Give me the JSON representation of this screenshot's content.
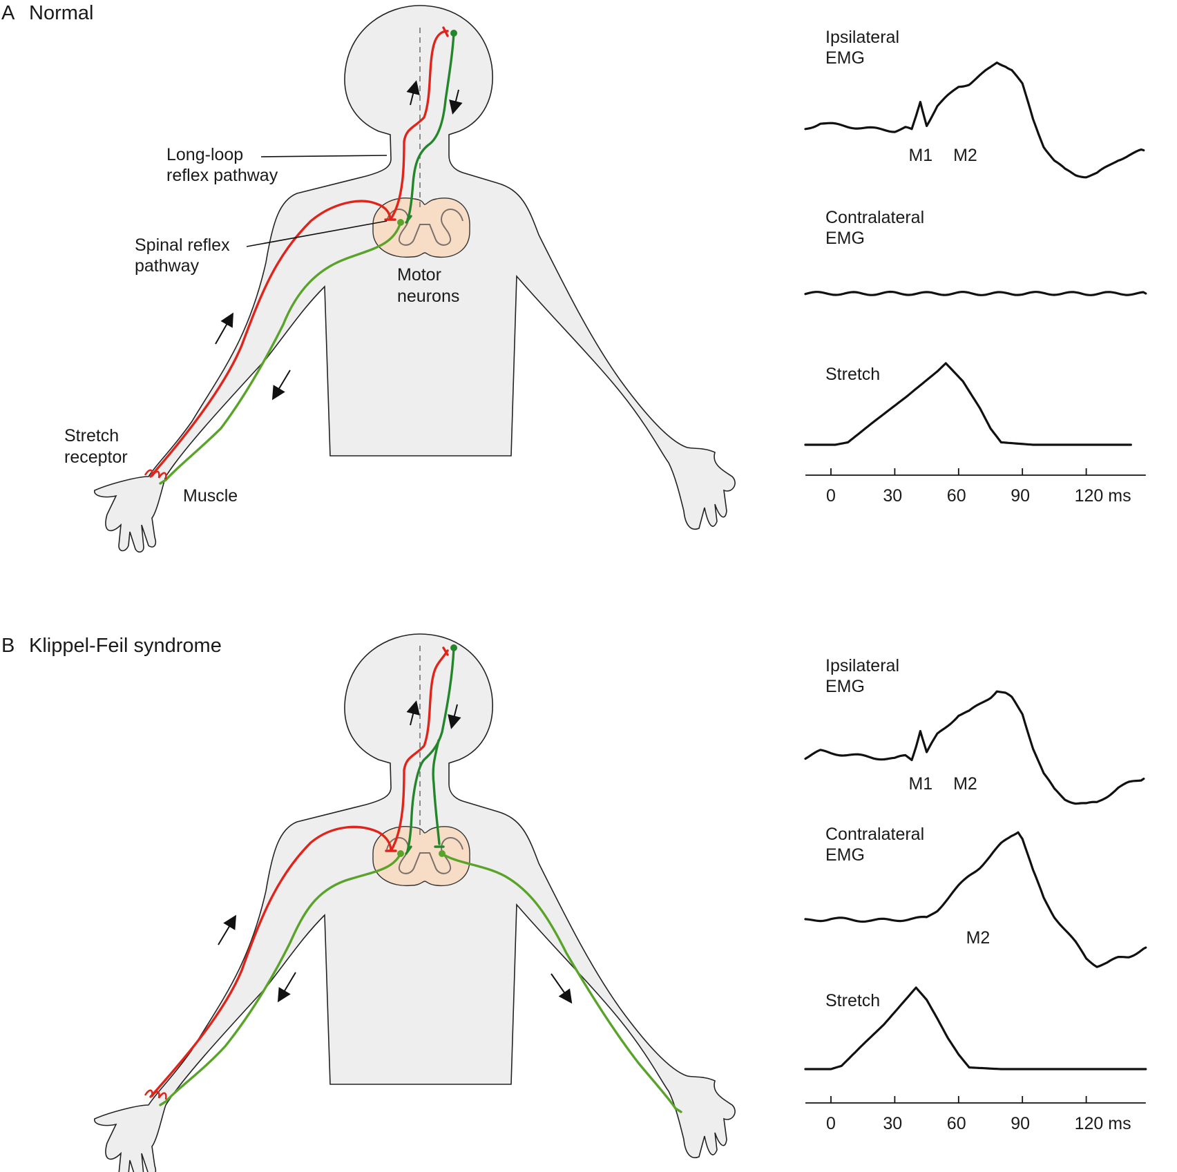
{
  "panels": [
    {
      "letter": "A",
      "title": "Normal",
      "labels": {
        "long_loop": [
          "Long-loop",
          "reflex pathway"
        ],
        "spinal": [
          "Spinal reflex",
          "pathway"
        ],
        "motor": [
          "Motor",
          "neurons"
        ],
        "stretch_receptor": [
          "Stretch",
          "receptor"
        ],
        "muscle": "Muscle"
      }
    },
    {
      "letter": "B",
      "title": "Klippel-Feil syndrome",
      "labels": {}
    }
  ],
  "colors": {
    "sensory": "#e0241b",
    "corticospinal": "#24862b",
    "motor_axon": "#5aa32a",
    "body": "#eeeeee",
    "spinal_cord": "#f7ddc6"
  },
  "chart_data": [
    {
      "type": "line",
      "panel": "A",
      "x_unit": "ms",
      "x_ticks": [
        0,
        30,
        60,
        90,
        120
      ],
      "x_tick_labels": [
        "0",
        "30",
        "60",
        "90",
        "120 ms"
      ],
      "xlim": [
        -12,
        148
      ],
      "traces": [
        {
          "name": [
            "Ipsilateral",
            "EMG"
          ],
          "peak_labels": [
            {
              "text": "M1",
              "x": 43
            },
            {
              "text": "M2",
              "x": 64
            }
          ],
          "x": [
            -12,
            -5,
            0,
            10,
            20,
            30,
            35,
            38,
            40,
            42,
            45,
            50,
            55,
            60,
            65,
            70,
            75,
            78,
            82,
            85,
            90,
            95,
            100,
            105,
            110,
            115,
            120,
            125,
            130,
            135,
            140,
            147
          ],
          "y": [
            0.12,
            0.2,
            0.18,
            0.15,
            0.12,
            0.1,
            0.14,
            0.1,
            0.28,
            0.48,
            0.18,
            0.42,
            0.55,
            0.68,
            0.72,
            0.82,
            0.92,
            1.0,
            0.96,
            0.9,
            0.7,
            0.25,
            -0.1,
            -0.3,
            -0.42,
            -0.48,
            -0.5,
            -0.47,
            -0.38,
            -0.28,
            -0.22,
            -0.16
          ]
        },
        {
          "name": [
            "Contralateral",
            "EMG"
          ],
          "x": [
            -12,
            0,
            15,
            30,
            45,
            60,
            75,
            90,
            105,
            120,
            135,
            148
          ],
          "y": [
            0.0,
            0.02,
            -0.02,
            0.03,
            -0.01,
            0.02,
            -0.02,
            0.01,
            0.02,
            -0.01,
            0.01,
            0.0
          ]
        },
        {
          "name": "Stretch",
          "x": [
            -12,
            2,
            8,
            20,
            35,
            50,
            54,
            62,
            70,
            75,
            80,
            95,
            120,
            141
          ],
          "y": [
            0.0,
            0.0,
            0.03,
            0.28,
            0.58,
            0.9,
            1.0,
            0.78,
            0.45,
            0.2,
            0.03,
            0.0,
            0.0,
            0.0
          ]
        }
      ]
    },
    {
      "type": "line",
      "panel": "B",
      "x_unit": "ms",
      "x_ticks": [
        0,
        30,
        60,
        90,
        120
      ],
      "x_tick_labels": [
        "0",
        "30",
        "60",
        "90",
        "120 ms"
      ],
      "xlim": [
        -12,
        148
      ],
      "traces": [
        {
          "name": [
            "Ipsilateral",
            "EMG"
          ],
          "peak_labels": [
            {
              "text": "M1",
              "x": 43
            },
            {
              "text": "M2",
              "x": 64
            }
          ],
          "x": [
            -12,
            -5,
            0,
            10,
            20,
            30,
            35,
            38,
            40,
            42,
            45,
            50,
            55,
            60,
            65,
            70,
            75,
            78,
            82,
            85,
            90,
            95,
            100,
            105,
            110,
            115,
            120,
            125,
            130,
            135,
            140,
            147
          ],
          "y": [
            0.12,
            0.2,
            0.18,
            0.15,
            0.12,
            0.1,
            0.14,
            0.1,
            0.28,
            0.48,
            0.18,
            0.42,
            0.55,
            0.68,
            0.72,
            0.82,
            0.92,
            1.0,
            0.96,
            0.9,
            0.7,
            0.25,
            -0.1,
            -0.3,
            -0.42,
            -0.48,
            -0.5,
            -0.47,
            -0.38,
            -0.28,
            -0.22,
            -0.16
          ]
        },
        {
          "name": [
            "Contralateral",
            "EMG"
          ],
          "peak_labels": [
            {
              "text": "M2",
              "x": 70
            }
          ],
          "x": [
            -12,
            0,
            10,
            20,
            30,
            40,
            45,
            50,
            55,
            60,
            65,
            70,
            75,
            80,
            85,
            88,
            90,
            95,
            100,
            105,
            110,
            115,
            120,
            125,
            130,
            135,
            140,
            148
          ],
          "y": [
            0.0,
            0.02,
            0.01,
            0.0,
            0.01,
            0.02,
            0.03,
            0.12,
            0.25,
            0.38,
            0.5,
            0.6,
            0.72,
            0.85,
            0.95,
            1.0,
            0.92,
            0.55,
            0.25,
            0.05,
            -0.1,
            -0.25,
            -0.42,
            -0.5,
            -0.47,
            -0.42,
            -0.4,
            -0.3
          ]
        },
        {
          "name": "Stretch",
          "x": [
            -12,
            0,
            5,
            15,
            25,
            35,
            40,
            45,
            50,
            55,
            60,
            65,
            80,
            120,
            148
          ],
          "y": [
            0.0,
            0.0,
            0.04,
            0.3,
            0.55,
            0.85,
            1.0,
            0.85,
            0.62,
            0.38,
            0.18,
            0.02,
            0.0,
            0.0,
            0.0
          ]
        }
      ]
    }
  ]
}
